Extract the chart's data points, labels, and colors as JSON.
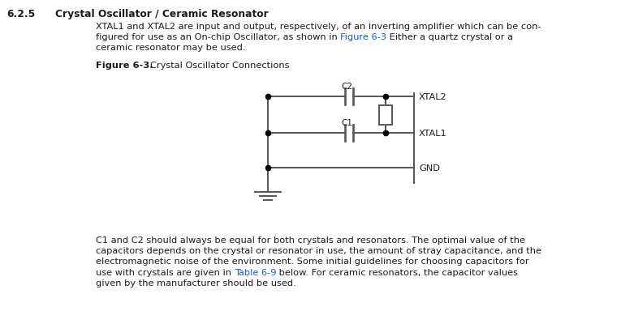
{
  "bg_color": "#ffffff",
  "text_color": "#1a1a1a",
  "link_color": "#1a5fb4",
  "line_color": "#555555",
  "section_number": "6.2.5",
  "section_title": "Crystal Oscillator / Ceramic Resonator",
  "figure_label": "Figure 6-3.",
  "figure_title": "    Crystal Oscillator Connections"
}
